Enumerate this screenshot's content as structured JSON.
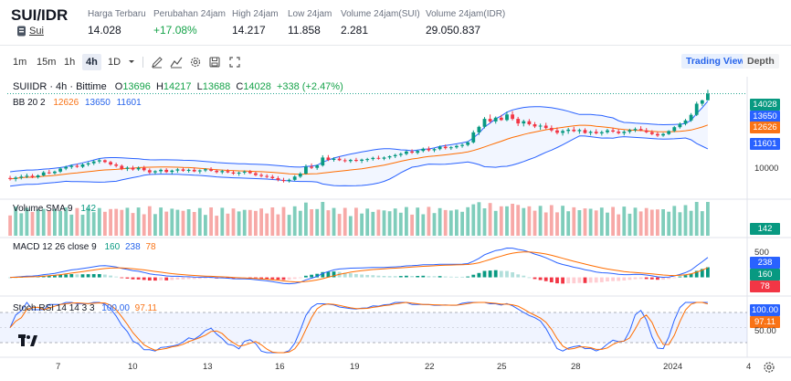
{
  "header": {
    "pair": "SUI/IDR",
    "coin": "Sui",
    "stats": [
      {
        "label": "Harga Terbaru",
        "value": "14.028"
      },
      {
        "label": "Perubahan 24jam",
        "value": "+17.08%"
      },
      {
        "label": "High 24jam",
        "value": "14.217"
      },
      {
        "label": "Low 24jam",
        "value": "11.858"
      },
      {
        "label": "Volume 24jam(SUI)",
        "value": "2.281"
      },
      {
        "label": "Volume 24jam(IDR)",
        "value": "29.050.837"
      }
    ]
  },
  "toolbar": {
    "timeframes": [
      "1m",
      "15m",
      "1h",
      "4h",
      "1D"
    ],
    "active_timeframe": "4h",
    "views": [
      "Trading View",
      "Depth"
    ]
  },
  "legend": {
    "symbol": "SUIIDR · 4h · Bittime",
    "o_label": "O",
    "o": "13696",
    "h_label": "H",
    "h": "14217",
    "l_label": "L",
    "l": "13688",
    "c_label": "C",
    "c": "14028",
    "change": "+338 (+2.47%)",
    "bb_label": "BB 20 2",
    "bb_basis": "12626",
    "bb_upper": "13650",
    "bb_lower": "11601",
    "vol_label": "Volume SMA 9",
    "vol_value": "142",
    "macd_label": "MACD 12 26 close 9",
    "macd_hist": "160",
    "macd_line": "238",
    "macd_signal": "78",
    "stoch_label": "Stoch RSI 14 14 3 3",
    "stoch_k": "100.00",
    "stoch_d": "97.11"
  },
  "axis": {
    "price_tick": "10000",
    "macd_ticks": [
      "500",
      "0"
    ],
    "stoch_ticks": [
      "50.00"
    ],
    "x_labels": [
      "7",
      "10",
      "13",
      "16",
      "19",
      "22",
      "25",
      "28",
      "2024",
      "4"
    ]
  },
  "badges": {
    "price": "14028",
    "upper": "13650",
    "basis": "12626",
    "lower": "11601",
    "volume": "142",
    "macd_line": "238",
    "macd_hist": "160",
    "macd_signal": "78",
    "stoch_k": "100.00",
    "stoch_d": "97.11"
  },
  "colors": {
    "up": "#089981",
    "down": "#f23645",
    "bb_band": "#2962ff",
    "bb_basis": "#ff6d00",
    "macd_line": "#2962ff",
    "macd_signal": "#ff6d00",
    "stoch_k": "#2962ff",
    "stoch_d": "#ff6d00"
  },
  "chart_data": {
    "type": "candlestick",
    "symbol": "SUIIDR",
    "interval": "4h",
    "price_range": [
      9000,
      14600
    ],
    "candles": [
      [
        9790,
        9900,
        9660,
        9740
      ],
      [
        9740,
        9880,
        9620,
        9810
      ],
      [
        9810,
        9960,
        9720,
        9860
      ],
      [
        9860,
        10010,
        9780,
        9900
      ],
      [
        9900,
        9990,
        9780,
        9830
      ],
      [
        9830,
        9970,
        9760,
        9920
      ],
      [
        9920,
        10140,
        9870,
        10070
      ],
      [
        10070,
        10200,
        9980,
        10030
      ],
      [
        10030,
        10160,
        9960,
        10110
      ],
      [
        10110,
        10330,
        10040,
        10260
      ],
      [
        10260,
        10410,
        10180,
        10340
      ],
      [
        10340,
        10470,
        10250,
        10400
      ],
      [
        10400,
        10490,
        10300,
        10350
      ],
      [
        10350,
        10520,
        10290,
        10470
      ],
      [
        10470,
        10590,
        10380,
        10530
      ],
      [
        10530,
        10690,
        10440,
        10620
      ],
      [
        10620,
        10760,
        10520,
        10680
      ],
      [
        10680,
        10720,
        10540,
        10590
      ],
      [
        10590,
        10650,
        10400,
        10470
      ],
      [
        10470,
        10560,
        10320,
        10400
      ],
      [
        10400,
        10470,
        10180,
        10250
      ],
      [
        10250,
        10380,
        10140,
        10310
      ],
      [
        10310,
        10400,
        10160,
        10220
      ],
      [
        10220,
        10370,
        10150,
        10300
      ],
      [
        10300,
        10400,
        10120,
        10180
      ],
      [
        10180,
        10270,
        9990,
        10070
      ],
      [
        10070,
        10180,
        9960,
        10130
      ],
      [
        10130,
        10260,
        10020,
        10200
      ],
      [
        10200,
        10280,
        10040,
        10090
      ],
      [
        10090,
        10210,
        9980,
        10160
      ],
      [
        10160,
        10290,
        10050,
        10220
      ],
      [
        10220,
        10300,
        10100,
        10150
      ],
      [
        10150,
        10260,
        10060,
        10200
      ],
      [
        10200,
        10310,
        10080,
        10120
      ],
      [
        10120,
        10220,
        10010,
        10170
      ],
      [
        10170,
        10280,
        10090,
        10230
      ],
      [
        10230,
        10330,
        10110,
        10150
      ],
      [
        10150,
        10220,
        10020,
        10080
      ],
      [
        10080,
        10200,
        9990,
        10140
      ],
      [
        10140,
        10230,
        10030,
        10070
      ],
      [
        10070,
        10160,
        9950,
        10010
      ],
      [
        10010,
        10110,
        9900,
        10060
      ],
      [
        10060,
        10170,
        9970,
        10110
      ],
      [
        10110,
        10190,
        9990,
        10030
      ],
      [
        10030,
        10110,
        9880,
        9940
      ],
      [
        9940,
        10030,
        9820,
        9890
      ],
      [
        9890,
        9980,
        9780,
        9850
      ],
      [
        9850,
        9950,
        9720,
        9780
      ],
      [
        9780,
        9880,
        9620,
        9690
      ],
      [
        9690,
        9800,
        9560,
        9640
      ],
      [
        9640,
        9760,
        9560,
        9700
      ],
      [
        9700,
        9930,
        9640,
        9860
      ],
      [
        9860,
        10080,
        9790,
        10010
      ],
      [
        10010,
        10470,
        9960,
        10360
      ],
      [
        10360,
        10520,
        10240,
        10300
      ],
      [
        10300,
        10470,
        10200,
        10420
      ],
      [
        10420,
        10930,
        10360,
        10820
      ],
      [
        10820,
        10940,
        10640,
        10700
      ],
      [
        10700,
        10830,
        10610,
        10760
      ],
      [
        10760,
        10860,
        10640,
        10680
      ],
      [
        10680,
        10770,
        10570,
        10640
      ],
      [
        10640,
        10750,
        10550,
        10700
      ],
      [
        10700,
        10800,
        10590,
        10650
      ],
      [
        10650,
        10760,
        10540,
        10710
      ],
      [
        10710,
        10800,
        10600,
        10740
      ],
      [
        10740,
        10860,
        10660,
        10800
      ],
      [
        10800,
        10910,
        10710,
        10760
      ],
      [
        10760,
        10870,
        10680,
        10820
      ],
      [
        10820,
        10930,
        10730,
        10880
      ],
      [
        10880,
        11010,
        10790,
        10940
      ],
      [
        10940,
        11070,
        10850,
        11000
      ],
      [
        11000,
        11180,
        10930,
        11120
      ],
      [
        11120,
        11230,
        11000,
        11060
      ],
      [
        11060,
        11190,
        10980,
        11150
      ],
      [
        11150,
        11320,
        11080,
        11260
      ],
      [
        11260,
        11370,
        11110,
        11180
      ],
      [
        11180,
        11290,
        11090,
        11240
      ],
      [
        11240,
        11420,
        11180,
        11360
      ],
      [
        11360,
        11470,
        11220,
        11290
      ],
      [
        11290,
        11390,
        11200,
        11330
      ],
      [
        11330,
        11460,
        11260,
        11400
      ],
      [
        11400,
        11520,
        11310,
        11450
      ],
      [
        11450,
        11640,
        11380,
        11580
      ],
      [
        11580,
        12180,
        11520,
        12080
      ],
      [
        12080,
        12420,
        11950,
        12360
      ],
      [
        12360,
        12850,
        12280,
        12760
      ],
      [
        12760,
        12980,
        12550,
        12630
      ],
      [
        12630,
        12880,
        12520,
        12820
      ],
      [
        12820,
        12960,
        12660,
        12700
      ],
      [
        12700,
        13120,
        12640,
        12980
      ],
      [
        12980,
        13150,
        12680,
        12760
      ],
      [
        12760,
        12860,
        12400,
        12530
      ],
      [
        12530,
        12720,
        12380,
        12640
      ],
      [
        12640,
        12750,
        12420,
        12490
      ],
      [
        12490,
        12600,
        12300,
        12380
      ],
      [
        12380,
        12520,
        12210,
        12420
      ],
      [
        12420,
        12560,
        12240,
        12300
      ],
      [
        12300,
        12430,
        12100,
        12180
      ],
      [
        12180,
        12330,
        11980,
        12060
      ],
      [
        12060,
        12230,
        11920,
        12150
      ],
      [
        12150,
        12310,
        12010,
        12220
      ],
      [
        12220,
        12360,
        12090,
        12140
      ],
      [
        12140,
        12270,
        12010,
        12200
      ],
      [
        12200,
        12290,
        12010,
        12050
      ],
      [
        12050,
        12180,
        11930,
        12110
      ],
      [
        12110,
        12240,
        11980,
        12030
      ],
      [
        12030,
        12170,
        11920,
        12090
      ],
      [
        12090,
        12260,
        12010,
        12180
      ],
      [
        12180,
        12310,
        12060,
        12120
      ],
      [
        12120,
        12250,
        11980,
        12040
      ],
      [
        12040,
        12190,
        11930,
        12110
      ],
      [
        12110,
        12260,
        12020,
        12190
      ],
      [
        12190,
        12330,
        12100,
        12250
      ],
      [
        12250,
        12390,
        12140,
        12180
      ],
      [
        12180,
        12300,
        12040,
        12090
      ],
      [
        12090,
        12190,
        11940,
        12000
      ],
      [
        12000,
        12110,
        11850,
        11920
      ],
      [
        11920,
        12060,
        11860,
        12000
      ],
      [
        12000,
        12190,
        11950,
        12150
      ],
      [
        12150,
        12400,
        12090,
        12340
      ],
      [
        12340,
        12580,
        12270,
        12510
      ],
      [
        12510,
        12760,
        12430,
        12680
      ],
      [
        12680,
        13050,
        12610,
        12960
      ],
      [
        12960,
        13620,
        12900,
        13520
      ],
      [
        13520,
        13720,
        13400,
        13690
      ],
      [
        13696,
        14217,
        13688,
        14028
      ]
    ],
    "bollinger": {
      "period": 20,
      "mult": 2,
      "last_basis": 12626,
      "last_upper": 13650,
      "last_lower": 11601
    },
    "volume_sma": {
      "period": 9,
      "last": 142
    },
    "macd": {
      "fast": 12,
      "slow": 26,
      "signal": 9,
      "last_line": 238,
      "last_signal": 78,
      "last_hist": 160,
      "range": [
        -250,
        650
      ]
    },
    "stoch_rsi": {
      "params": "14 14 3 3",
      "last_k": 100.0,
      "last_d": 97.11,
      "range": [
        0,
        100
      ],
      "bands": [
        20,
        80
      ]
    },
    "x_tick_labels": [
      "7",
      "10",
      "13",
      "16",
      "19",
      "22",
      "25",
      "28",
      "2024",
      "4"
    ]
  }
}
